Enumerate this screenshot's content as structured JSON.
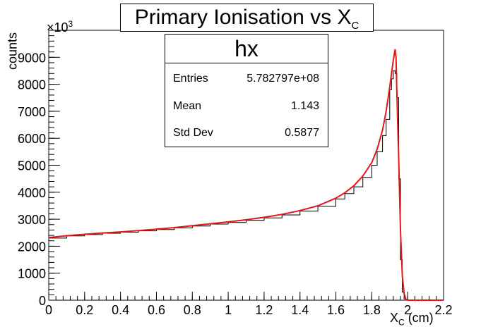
{
  "chart_data": {
    "type": "histogram",
    "title": "Primary Ionisation vs X",
    "title_sub": "C",
    "xlabel": "X",
    "xlabel_sub": "C",
    "xlabel_unit": " (cm)",
    "ylabel": "counts",
    "y_multiplier_prefix": "×10",
    "y_multiplier_exp": "3",
    "xlim": [
      0,
      2.2
    ],
    "ylim": [
      0,
      10000
    ],
    "x_ticks": [
      0,
      0.2,
      0.4,
      0.6,
      0.8,
      1,
      1.2,
      1.4,
      1.6,
      1.8,
      2,
      2.2
    ],
    "x_tick_labels": [
      "0",
      "0.2",
      "0.4",
      "0.6",
      "0.8",
      "1",
      "1.2",
      "1.4",
      "1.6",
      "1.8",
      "2",
      "2.2"
    ],
    "y_ticks": [
      0,
      1000,
      2000,
      3000,
      4000,
      5000,
      6000,
      7000,
      8000,
      9000
    ],
    "y_tick_labels": [
      "0",
      "1000",
      "2000",
      "3000",
      "4000",
      "5000",
      "6000",
      "7000",
      "8000",
      "9000"
    ],
    "histogram": {
      "x": [
        0,
        0.1,
        0.2,
        0.3,
        0.4,
        0.5,
        0.6,
        0.7,
        0.8,
        0.9,
        1.0,
        1.1,
        1.2,
        1.3,
        1.4,
        1.5,
        1.6,
        1.65,
        1.7,
        1.75,
        1.8,
        1.83,
        1.86,
        1.88,
        1.9,
        1.91,
        1.92,
        1.93,
        1.94,
        1.95,
        1.96,
        1.97,
        1.98,
        1.99,
        2.0,
        2.01,
        2.2
      ],
      "y": [
        2300,
        2380,
        2430,
        2480,
        2520,
        2570,
        2620,
        2680,
        2750,
        2820,
        2880,
        2960,
        3050,
        3160,
        3300,
        3480,
        3750,
        3950,
        4200,
        4550,
        5000,
        5500,
        6100,
        6700,
        7800,
        8200,
        8500,
        8400,
        7500,
        4500,
        1500,
        300,
        50,
        0,
        0,
        0,
        0
      ],
      "color": "#000000"
    },
    "fit": {
      "x": [
        0,
        0.1,
        0.2,
        0.3,
        0.4,
        0.5,
        0.6,
        0.7,
        0.8,
        0.9,
        1.0,
        1.1,
        1.2,
        1.3,
        1.4,
        1.5,
        1.6,
        1.65,
        1.7,
        1.75,
        1.8,
        1.83,
        1.86,
        1.88,
        1.9,
        1.91,
        1.92,
        1.93,
        1.935,
        1.94,
        1.95,
        1.96,
        1.97,
        1.98,
        1.99,
        2.0,
        2.01,
        2.2
      ],
      "y": [
        2320,
        2390,
        2440,
        2490,
        2530,
        2580,
        2630,
        2690,
        2760,
        2830,
        2900,
        2980,
        3070,
        3180,
        3320,
        3500,
        3780,
        3980,
        4240,
        4600,
        5100,
        5600,
        6300,
        7000,
        7900,
        8400,
        8900,
        9300,
        9000,
        7700,
        5200,
        2600,
        900,
        250,
        40,
        0,
        0,
        0
      ],
      "color": "#e8141c"
    },
    "stats_box": {
      "name": "hx",
      "rows": [
        {
          "label": "Entries",
          "value": "5.782797e+08"
        },
        {
          "label": "Mean",
          "value": "1.143"
        },
        {
          "label": "Std Dev",
          "value": "0.5877"
        }
      ]
    }
  }
}
